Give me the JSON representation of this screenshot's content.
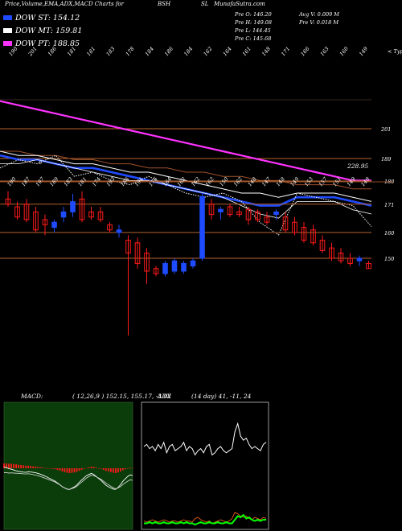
{
  "header": {
    "title": "Price,Volume,EMA,ADX,MACD Charts for",
    "symbol": "BSH",
    "name": "SL",
    "site": "MunafaSutra.com"
  },
  "legend": [
    {
      "label": "DOW ST: 154.12",
      "color": "#1f4bff"
    },
    {
      "label": "DOW MT: 159.81",
      "color": "#ffffff"
    },
    {
      "label": "DOW PT: 188.85",
      "color": "#ff33ff"
    }
  ],
  "ohlc": {
    "open": "Pre  O: 146.20",
    "high": "Pre  H: 149.08",
    "low": "Pre  L: 144.45",
    "close": "Pre  C: 145.68",
    "avg_vol": "Avg V: 0.009 M",
    "pre_vol": "Pre  V: 0.018 M"
  },
  "colors": {
    "up": "#1f4bff",
    "down": "#ff1a1a",
    "grid": "#b8632e",
    "ema_long": "#ff33ff",
    "ema_mid": "#a0522d",
    "macd_green": "#00ff00",
    "macd_bg": "#0a3d0a"
  },
  "chart_data": [
    {
      "type": "line",
      "title": "EMA panel",
      "x_top_labels": [
        "190",
        "201",
        "186",
        "181",
        "181",
        "183",
        "178",
        "184",
        "186",
        "184",
        "162",
        "164",
        "161",
        "148",
        "171",
        "166",
        "163",
        "160",
        "149"
      ],
      "x_bottom_labels": [
        "6",
        "228.95"
      ],
      "y_tick_labels": [
        "201",
        "189"
      ],
      "corner_label": "< Type",
      "series": [
        {
          "values": [
            208,
            207,
            206,
            205,
            204,
            203,
            202,
            201,
            200,
            199,
            198,
            197,
            196,
            195,
            194,
            193,
            192,
            191,
            190,
            189,
            189
          ]
        },
        {
          "values": [
            196,
            196,
            195,
            195,
            194,
            194,
            193,
            193,
            192,
            192,
            191,
            191,
            190,
            190,
            189,
            189,
            188,
            188,
            188,
            187,
            187
          ]
        },
        {
          "values": [
            196,
            195,
            195,
            194,
            193,
            193,
            192,
            191,
            191,
            190,
            189,
            188,
            187,
            186,
            186,
            185,
            186,
            186,
            186,
            185,
            184
          ]
        },
        {
          "values": [
            195,
            194,
            194,
            193,
            192,
            192,
            191,
            190,
            189,
            188,
            187,
            186,
            185,
            184,
            183,
            183,
            185,
            185,
            185,
            184,
            183
          ]
        },
        {
          "values": [
            193,
            193,
            194,
            193,
            192,
            191,
            190,
            189,
            189,
            188,
            187,
            186,
            185,
            183,
            181,
            180,
            184,
            184,
            184,
            182,
            181
          ]
        },
        {
          "values": [
            192,
            194,
            193,
            195,
            190,
            191,
            189,
            188,
            190,
            188,
            186,
            185,
            186,
            184,
            179,
            176,
            186,
            185,
            184,
            183,
            178
          ]
        }
      ]
    },
    {
      "type": "bar",
      "title": "Price panel (candlestick)",
      "x_top_labels": [
        "190",
        "187",
        "197",
        "189",
        "183",
        "181",
        "174",
        "193",
        "186",
        "191",
        "176",
        "164",
        "162",
        "162",
        "162",
        "150",
        "162",
        "148",
        "147",
        "148",
        "149",
        "153",
        "157",
        "151",
        "149",
        "149"
      ],
      "y_tick_labels": [
        "180",
        "171",
        "160",
        "150"
      ],
      "y_tick_values": [
        180,
        171,
        160,
        150
      ],
      "series": [
        {
          "name": "candles",
          "values": [
            {
              "o": 173,
              "h": 176,
              "l": 170,
              "c": 171
            },
            {
              "o": 170,
              "h": 172,
              "l": 165,
              "c": 166
            },
            {
              "o": 171,
              "h": 173,
              "l": 164,
              "c": 165
            },
            {
              "o": 168,
              "h": 170,
              "l": 160,
              "c": 161
            },
            {
              "o": 165,
              "h": 167,
              "l": 159,
              "c": 163
            },
            {
              "o": 162,
              "h": 165,
              "l": 160,
              "c": 164
            },
            {
              "o": 166,
              "h": 170,
              "l": 164,
              "c": 168
            },
            {
              "o": 168,
              "h": 175,
              "l": 166,
              "c": 172
            },
            {
              "o": 173,
              "h": 176,
              "l": 164,
              "c": 165
            },
            {
              "o": 168,
              "h": 170,
              "l": 165,
              "c": 166
            },
            {
              "o": 168,
              "h": 170,
              "l": 164,
              "c": 165
            },
            {
              "o": 163,
              "h": 164,
              "l": 160,
              "c": 161
            },
            {
              "o": 160,
              "h": 163,
              "l": 158,
              "c": 161
            },
            {
              "o": 157,
              "h": 159,
              "l": 120,
              "c": 152
            },
            {
              "o": 156,
              "h": 158,
              "l": 146,
              "c": 148
            },
            {
              "o": 152,
              "h": 154,
              "l": 140,
              "c": 145
            },
            {
              "o": 146,
              "h": 147,
              "l": 143,
              "c": 144
            },
            {
              "o": 144,
              "h": 149,
              "l": 143,
              "c": 148
            },
            {
              "o": 145,
              "h": 150,
              "l": 144,
              "c": 149
            },
            {
              "o": 145,
              "h": 149,
              "l": 144,
              "c": 148
            },
            {
              "o": 147,
              "h": 150,
              "l": 146,
              "c": 149
            },
            {
              "o": 150,
              "h": 175,
              "l": 149,
              "c": 174
            },
            {
              "o": 171,
              "h": 173,
              "l": 165,
              "c": 167
            },
            {
              "o": 168,
              "h": 170,
              "l": 165,
              "c": 169
            },
            {
              "o": 170,
              "h": 171,
              "l": 166,
              "c": 167
            },
            {
              "o": 168,
              "h": 170,
              "l": 166,
              "c": 167
            },
            {
              "o": 169,
              "h": 170,
              "l": 163,
              "c": 165
            },
            {
              "o": 168,
              "h": 169,
              "l": 164,
              "c": 165
            },
            {
              "o": 166,
              "h": 168,
              "l": 163,
              "c": 164
            },
            {
              "o": 167,
              "h": 169,
              "l": 165,
              "c": 168
            },
            {
              "o": 166,
              "h": 168,
              "l": 160,
              "c": 161
            },
            {
              "o": 164,
              "h": 166,
              "l": 159,
              "c": 160
            },
            {
              "o": 162,
              "h": 164,
              "l": 156,
              "c": 157
            },
            {
              "o": 161,
              "h": 163,
              "l": 155,
              "c": 156
            },
            {
              "o": 157,
              "h": 159,
              "l": 152,
              "c": 153
            },
            {
              "o": 154,
              "h": 156,
              "l": 149,
              "c": 150
            },
            {
              "o": 152,
              "h": 154,
              "l": 148,
              "c": 149
            },
            {
              "o": 150,
              "h": 152,
              "l": 147,
              "c": 148
            },
            {
              "o": 149,
              "h": 151,
              "l": 147,
              "c": 150
            },
            {
              "o": 148,
              "h": 149,
              "l": 146,
              "c": 146
            }
          ]
        }
      ]
    },
    {
      "type": "bar",
      "title": "MACD",
      "label": "MACD:",
      "params": "( 12,26,9 ) 152.15,  155.17,  -3.02",
      "values": [
        1.5,
        1.5,
        1.4,
        1.4,
        1.3,
        1.2,
        1.1,
        1.0,
        0.9,
        0.8,
        0.8,
        0.7,
        0.6,
        0.5,
        0.4,
        0.3,
        0.2,
        0.1,
        0.0,
        -0.1,
        -0.2,
        -0.3,
        -0.5,
        -0.7,
        -1.0,
        -1.2,
        -1.4,
        -1.5,
        -1.4,
        -1.3,
        -1.1,
        -0.8,
        -0.5,
        -0.2,
        0.1,
        0.3,
        0.5,
        0.4,
        0.2,
        0.0,
        -0.2,
        -0.5,
        -0.8,
        -1.0,
        -1.2,
        -1.4,
        -1.5,
        -1.3,
        -1.0,
        -0.6,
        -0.3,
        0.0,
        0.2,
        0.1
      ]
    },
    {
      "type": "line",
      "title": "ADX",
      "label": "ADX",
      "params": "(14  day) 41,  -11,  24",
      "series": [
        {
          "values": [
            25,
            26,
            24,
            25,
            23,
            26,
            24,
            27,
            22,
            25,
            26,
            23,
            24,
            25,
            27,
            23,
            25,
            24,
            21,
            23,
            24,
            22,
            25,
            26,
            21,
            22,
            24,
            25,
            23,
            22,
            23,
            24,
            32,
            36,
            30,
            28,
            29,
            26,
            24,
            25,
            24,
            23,
            26,
            27
          ]
        },
        {
          "values": [
            5,
            4,
            5,
            6,
            5,
            4,
            5,
            6,
            5,
            4,
            5,
            5,
            4,
            5,
            6,
            5,
            5,
            4,
            7,
            8,
            6,
            5,
            4,
            5,
            3,
            4,
            5,
            6,
            5,
            4,
            5,
            7,
            12,
            11,
            9,
            8,
            9,
            7,
            6,
            8,
            7,
            6,
            8,
            7
          ]
        },
        {
          "values": [
            3,
            3,
            4,
            3,
            4,
            3,
            3,
            4,
            3,
            3,
            4,
            3,
            3,
            4,
            3,
            4,
            3,
            3,
            2,
            3,
            4,
            3,
            3,
            4,
            3,
            3,
            4,
            3,
            3,
            4,
            3,
            3,
            6,
            9,
            8,
            10,
            7,
            8,
            6,
            5,
            6,
            5,
            6,
            6
          ]
        }
      ]
    }
  ]
}
